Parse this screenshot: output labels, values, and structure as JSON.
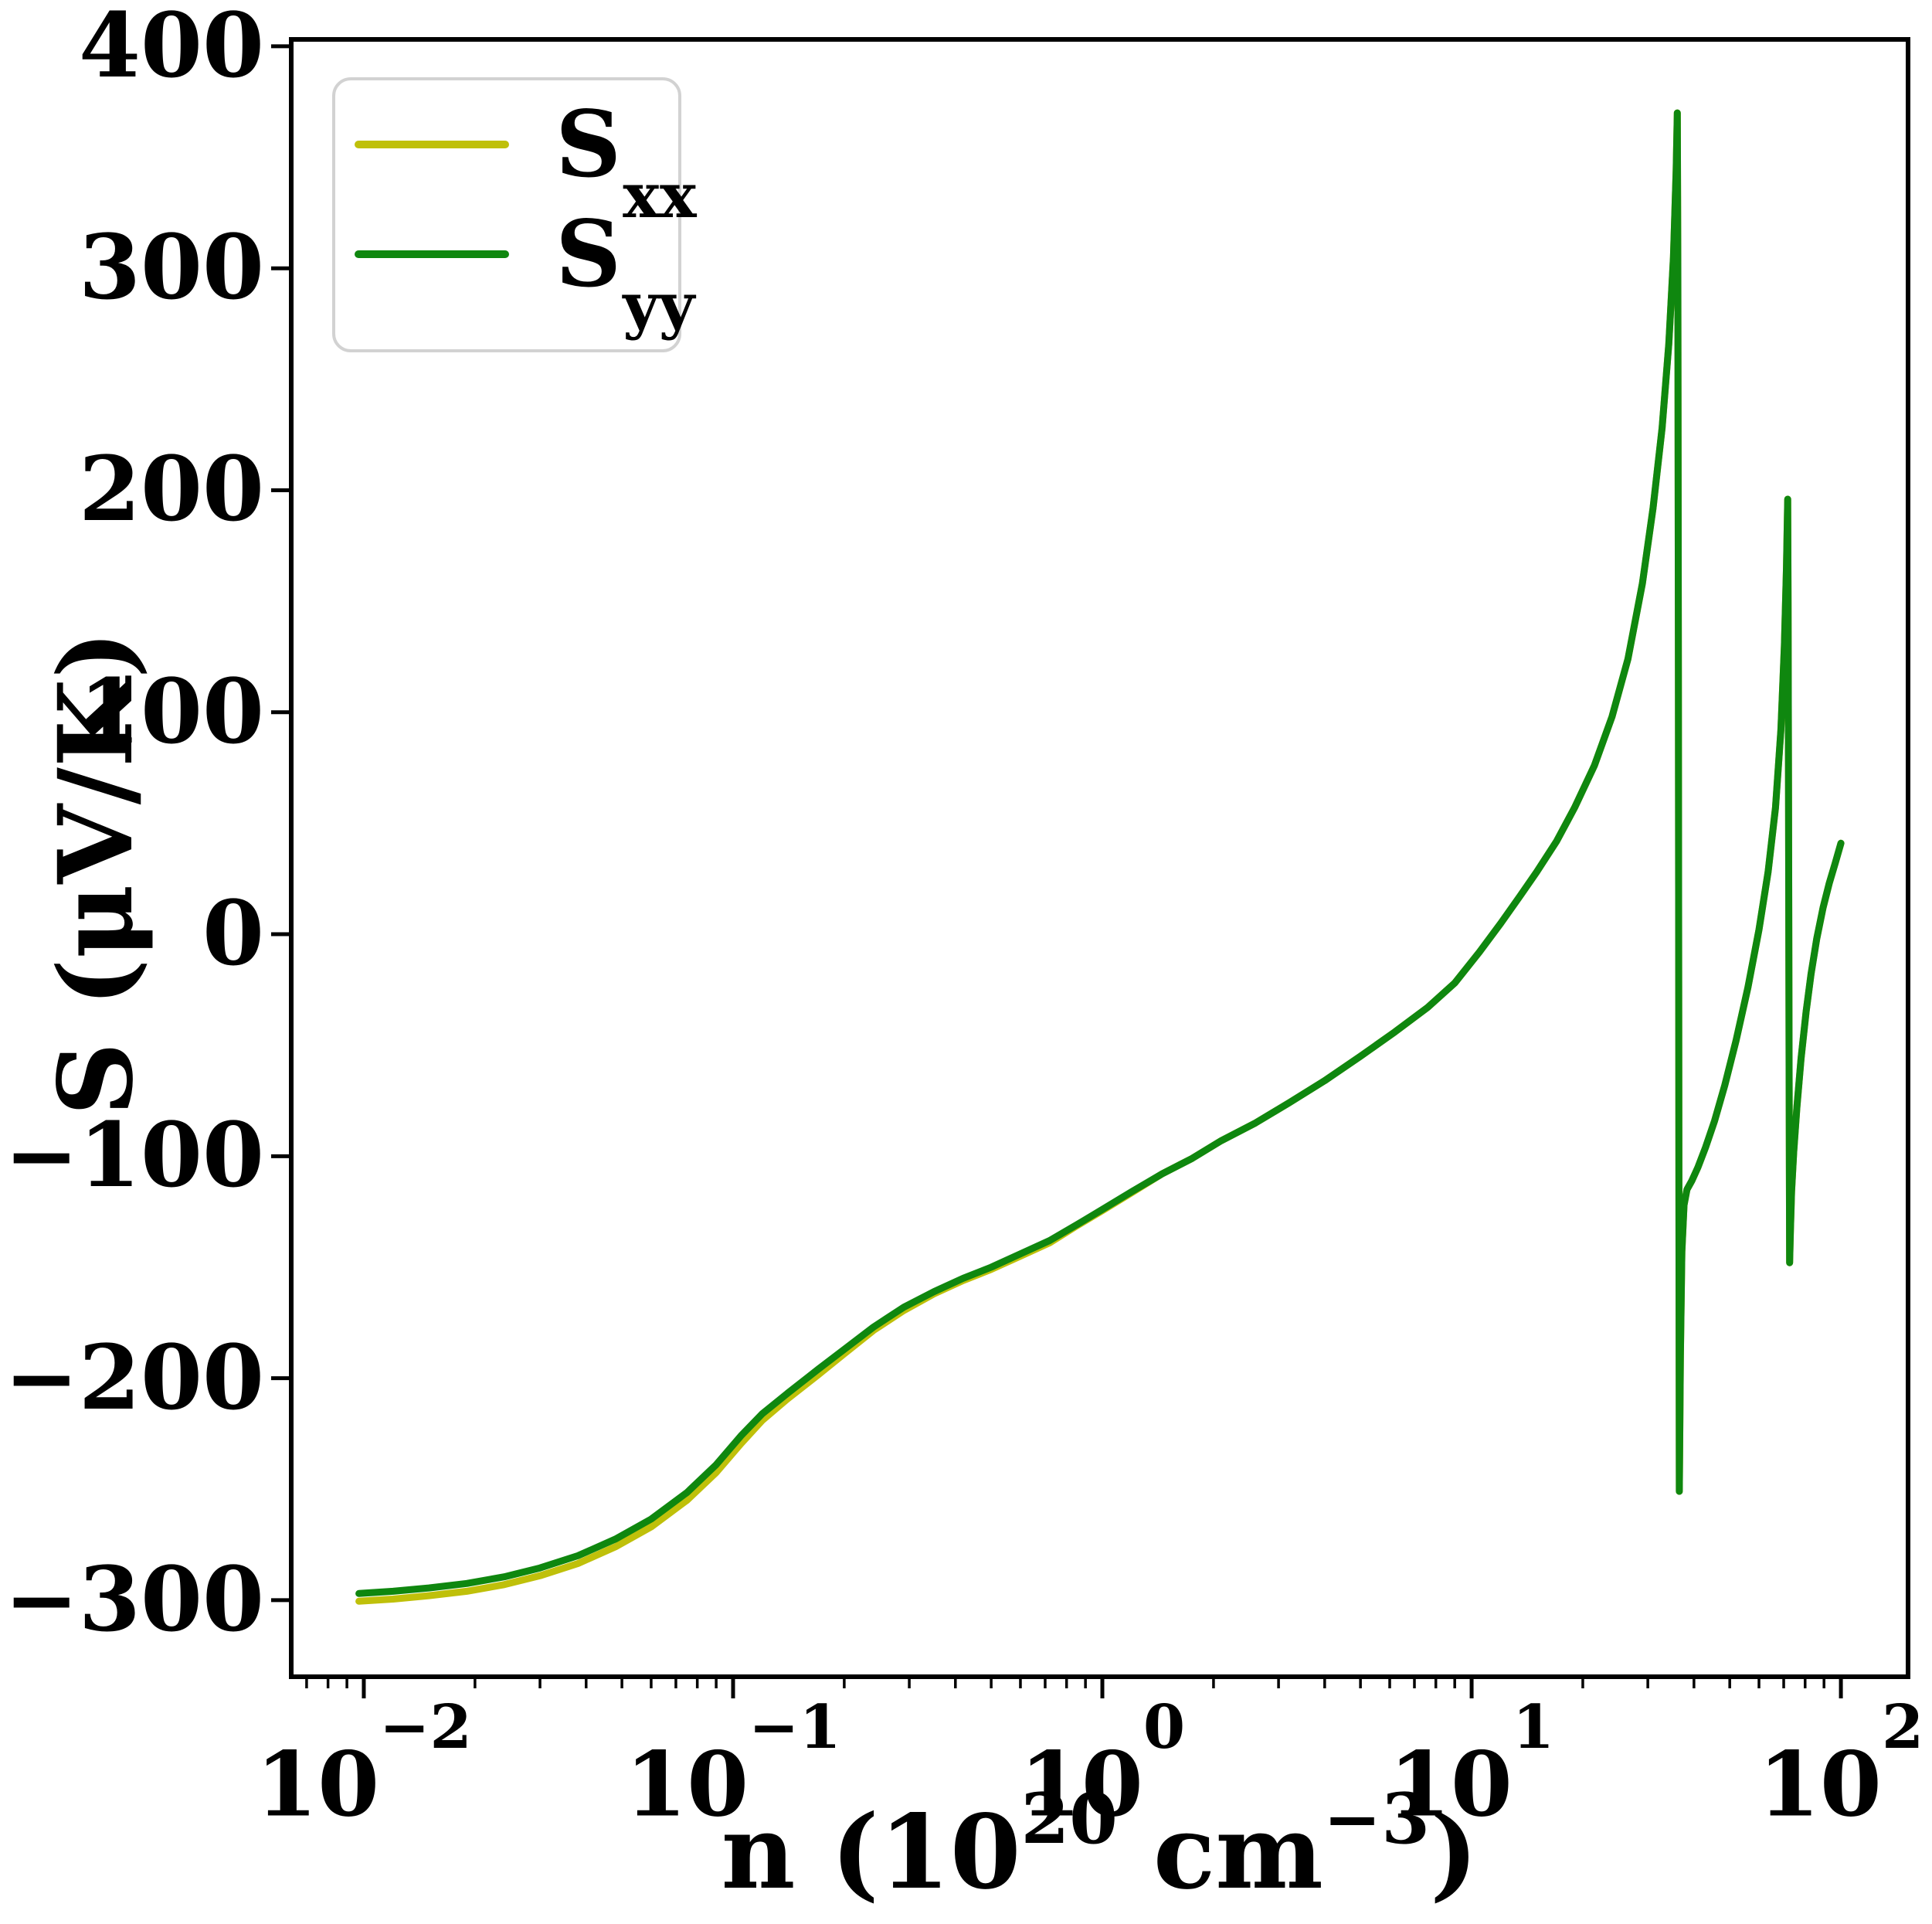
{
  "figure": {
    "background": "#ffffff"
  },
  "axes": {
    "ylabel": "S (μV/K)",
    "xlabel_parts": {
      "prefix": "n (10",
      "exp1": "20",
      "mid": " cm",
      "exp2": "−3",
      "suffix": ")"
    },
    "y_ticks": [
      "400",
      "300",
      "200",
      "100",
      "0",
      "−100",
      "−200",
      "−300"
    ],
    "x_ticks": [
      {
        "base": "10",
        "exp": "−2"
      },
      {
        "base": "10",
        "exp": "−1"
      },
      {
        "base": "10",
        "exp": "0"
      },
      {
        "base": "10",
        "exp": "1"
      },
      {
        "base": "10",
        "exp": "2"
      }
    ]
  },
  "legend": {
    "entries": [
      {
        "label": "S",
        "sub": "xx",
        "color": "#bfc00a"
      },
      {
        "label": "S",
        "sub": "yy",
        "color": "#0f870f"
      }
    ]
  },
  "chart_data": {
    "type": "line",
    "title": "",
    "xlabel": "n (10^20 cm^-3)",
    "ylabel": "S (μV/K)",
    "xscale": "log",
    "grid": false,
    "legend_position": "upper left",
    "xlim": [
      0.00636,
      152
    ],
    "ylim": [
      -334.5,
      403.1
    ],
    "x_tick_values": [
      0.01,
      0.1,
      1,
      10,
      100
    ],
    "y_tick_values": [
      400,
      300,
      200,
      100,
      0,
      -100,
      -200,
      -300
    ],
    "series": [
      {
        "name": "S_xx",
        "color": "#bfc00a",
        "linewidth": 9,
        "points": [
          [
            0.0097,
            -300.5
          ],
          [
            0.012,
            -299.5
          ],
          [
            0.015,
            -298
          ],
          [
            0.019,
            -296
          ],
          [
            0.024,
            -293
          ],
          [
            0.03,
            -289
          ],
          [
            0.038,
            -283.5
          ],
          [
            0.048,
            -276
          ],
          [
            0.06,
            -267
          ],
          [
            0.075,
            -255
          ],
          [
            0.09,
            -242.5
          ],
          [
            0.105,
            -229.5
          ],
          [
            0.12,
            -219
          ],
          [
            0.14,
            -209.5
          ],
          [
            0.17,
            -198.5
          ],
          [
            0.2,
            -189
          ],
          [
            0.24,
            -178.5
          ],
          [
            0.29,
            -169.5
          ],
          [
            0.35,
            -162
          ],
          [
            0.42,
            -156
          ],
          [
            0.5,
            -151
          ],
          [
            0.6,
            -145
          ],
          [
            0.72,
            -139
          ],
          [
            0.85,
            -131.5
          ],
          [
            1.0,
            -124.5
          ],
          [
            1.2,
            -116.5
          ],
          [
            1.45,
            -108
          ],
          [
            1.75,
            -101
          ],
          [
            2.1,
            -93
          ],
          [
            2.6,
            -85
          ],
          [
            3.2,
            -76
          ],
          [
            4.0,
            -66
          ],
          [
            5.0,
            -55
          ],
          [
            6.2,
            -44
          ],
          [
            7.6,
            -33
          ],
          [
            9.0,
            -22
          ],
          [
            10.5,
            -8
          ],
          [
            12,
            5
          ],
          [
            13.5,
            17
          ],
          [
            15,
            28
          ],
          [
            17,
            42
          ],
          [
            19,
            57
          ],
          [
            21.5,
            76
          ],
          [
            24,
            98
          ],
          [
            26.5,
            124
          ],
          [
            29,
            158
          ],
          [
            31,
            192
          ],
          [
            32.8,
            228
          ],
          [
            34.2,
            266
          ],
          [
            35.2,
            305
          ],
          [
            35.8,
            344
          ],
          [
            36.05,
            370
          ],
          [
            36.18,
            300
          ],
          [
            36.3,
            120
          ],
          [
            36.42,
            -120
          ],
          [
            36.52,
            -251
          ],
          [
            36.75,
            -190
          ],
          [
            37.1,
            -143
          ],
          [
            37.6,
            -122
          ],
          [
            38.3,
            -115
          ],
          [
            39.5,
            -111
          ],
          [
            41,
            -105
          ],
          [
            43,
            -96
          ],
          [
            45.5,
            -84
          ],
          [
            48.5,
            -68
          ],
          [
            52,
            -48
          ],
          [
            56,
            -24
          ],
          [
            60,
            2
          ],
          [
            63.5,
            28
          ],
          [
            66.5,
            57
          ],
          [
            68.8,
            92
          ],
          [
            70.3,
            130
          ],
          [
            71.2,
            165
          ],
          [
            71.75,
            196
          ],
          [
            71.95,
            150
          ],
          [
            72.15,
            60
          ],
          [
            72.4,
            -60
          ],
          [
            72.65,
            -148
          ],
          [
            72.95,
            -135
          ],
          [
            73.5,
            -116
          ],
          [
            74.5,
            -98
          ],
          [
            76,
            -78
          ],
          [
            78,
            -56
          ],
          [
            80.5,
            -35
          ],
          [
            83,
            -18
          ],
          [
            86,
            -2
          ],
          [
            89.5,
            12
          ],
          [
            93,
            23
          ],
          [
            96.5,
            32
          ],
          [
            100,
            41
          ]
        ]
      },
      {
        "name": "S_yy",
        "color": "#0f870f",
        "linewidth": 9,
        "points": [
          [
            0.0097,
            -297
          ],
          [
            0.012,
            -296
          ],
          [
            0.015,
            -294.5
          ],
          [
            0.019,
            -292.5
          ],
          [
            0.024,
            -289.5
          ],
          [
            0.03,
            -285.5
          ],
          [
            0.038,
            -280
          ],
          [
            0.048,
            -272.5
          ],
          [
            0.06,
            -263.5
          ],
          [
            0.075,
            -251.5
          ],
          [
            0.09,
            -239
          ],
          [
            0.105,
            -226
          ],
          [
            0.12,
            -216
          ],
          [
            0.14,
            -207
          ],
          [
            0.17,
            -196
          ],
          [
            0.2,
            -187
          ],
          [
            0.24,
            -177
          ],
          [
            0.29,
            -168
          ],
          [
            0.35,
            -161
          ],
          [
            0.42,
            -155
          ],
          [
            0.5,
            -150
          ],
          [
            0.6,
            -144
          ],
          [
            0.72,
            -138
          ],
          [
            0.85,
            -131
          ],
          [
            1.0,
            -124
          ],
          [
            1.2,
            -116
          ],
          [
            1.45,
            -108
          ],
          [
            1.75,
            -101
          ],
          [
            2.1,
            -93
          ],
          [
            2.6,
            -85
          ],
          [
            3.2,
            -76
          ],
          [
            4.0,
            -66
          ],
          [
            5.0,
            -55
          ],
          [
            6.2,
            -44
          ],
          [
            7.6,
            -33
          ],
          [
            9.0,
            -22
          ],
          [
            10.5,
            -8
          ],
          [
            12,
            5
          ],
          [
            13.5,
            17
          ],
          [
            15,
            28
          ],
          [
            17,
            42
          ],
          [
            19,
            57
          ],
          [
            21.5,
            76
          ],
          [
            24,
            98
          ],
          [
            26.5,
            124
          ],
          [
            29,
            158
          ],
          [
            31,
            192
          ],
          [
            32.8,
            228
          ],
          [
            34.2,
            266
          ],
          [
            35.2,
            305
          ],
          [
            35.8,
            344
          ],
          [
            36.05,
            370
          ],
          [
            36.18,
            300
          ],
          [
            36.3,
            120
          ],
          [
            36.42,
            -120
          ],
          [
            36.52,
            -251
          ],
          [
            36.75,
            -190
          ],
          [
            37.1,
            -143
          ],
          [
            37.6,
            -122
          ],
          [
            38.3,
            -115
          ],
          [
            39.5,
            -111
          ],
          [
            41,
            -105
          ],
          [
            43,
            -96
          ],
          [
            45.5,
            -84
          ],
          [
            48.5,
            -68
          ],
          [
            52,
            -48
          ],
          [
            56,
            -24
          ],
          [
            60,
            2
          ],
          [
            63.5,
            28
          ],
          [
            66.5,
            57
          ],
          [
            68.8,
            92
          ],
          [
            70.3,
            130
          ],
          [
            71.2,
            165
          ],
          [
            71.75,
            196
          ],
          [
            71.95,
            150
          ],
          [
            72.15,
            60
          ],
          [
            72.4,
            -60
          ],
          [
            72.65,
            -148
          ],
          [
            72.95,
            -135
          ],
          [
            73.5,
            -116
          ],
          [
            74.5,
            -98
          ],
          [
            76,
            -78
          ],
          [
            78,
            -56
          ],
          [
            80.5,
            -35
          ],
          [
            83,
            -18
          ],
          [
            86,
            -2
          ],
          [
            89.5,
            12
          ],
          [
            93,
            23
          ],
          [
            96.5,
            32
          ],
          [
            100,
            41
          ]
        ]
      }
    ]
  }
}
